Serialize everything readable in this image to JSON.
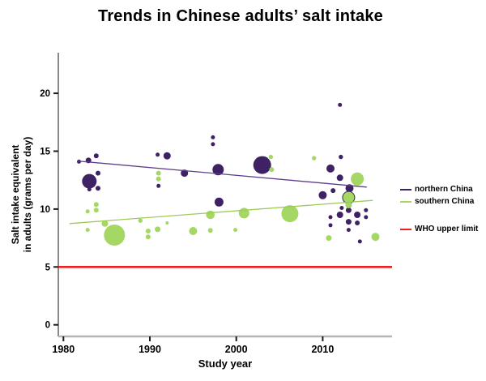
{
  "window": {
    "background": "#ffffff"
  },
  "chart_data": {
    "type": "scatter",
    "title": "Trends in Chinese adults’ salt intake",
    "xlabel": "Study year",
    "ylabel_line1": "Salt intake equivalent",
    "ylabel_line2": "in adults (grams per day)",
    "xticks": [
      1980,
      1990,
      2000,
      2010
    ],
    "yticks": [
      0,
      5,
      10,
      15,
      20
    ],
    "xlim": [
      1979.4,
      2018.0
    ],
    "ylim": [
      -1.0,
      23.5
    ],
    "grid": false,
    "legend_position": "right",
    "point_format": "[study_year, salt_intake_g_per_day, bubble_radius_px]",
    "series": [
      {
        "name": "northern China",
        "color": "#3e2263",
        "trend_color": "#5e3d8a",
        "points": [
          [
            1981.8,
            14.1,
            2.5
          ],
          [
            1982.9,
            14.2,
            3.5
          ],
          [
            1983.8,
            14.6,
            3
          ],
          [
            1983.0,
            12.4,
            9
          ],
          [
            1983.0,
            11.7,
            2.5
          ],
          [
            1984.0,
            13.1,
            3
          ],
          [
            1984.0,
            11.8,
            3
          ],
          [
            1990.9,
            14.7,
            2.5
          ],
          [
            1992.0,
            14.6,
            4.5
          ],
          [
            1991.0,
            12.0,
            2.5
          ],
          [
            1994.0,
            13.1,
            4.5
          ],
          [
            1997.3,
            16.2,
            2.5
          ],
          [
            1997.3,
            15.6,
            2.5
          ],
          [
            1997.9,
            13.4,
            7
          ],
          [
            1998.0,
            10.6,
            5.5
          ],
          [
            2003.0,
            13.8,
            11
          ],
          [
            2012.0,
            19.0,
            2.5
          ],
          [
            2012.1,
            14.5,
            2.7
          ],
          [
            2010.9,
            13.5,
            5
          ],
          [
            2012.0,
            12.7,
            4
          ],
          [
            2013.1,
            11.8,
            5
          ],
          [
            2011.2,
            11.6,
            3
          ],
          [
            2010.0,
            11.2,
            5
          ],
          [
            2013.0,
            11.0,
            8
          ],
          [
            2012.2,
            10.1,
            2.5
          ],
          [
            2013.0,
            9.9,
            3.5
          ],
          [
            2012.0,
            9.5,
            4
          ],
          [
            2014.0,
            9.5,
            4
          ],
          [
            2015.0,
            9.9,
            2.5
          ],
          [
            2015.0,
            9.3,
            2.5
          ],
          [
            2010.9,
            9.3,
            2.5
          ],
          [
            2010.9,
            8.6,
            2.5
          ],
          [
            2013.0,
            8.9,
            3.5
          ],
          [
            2014.0,
            8.8,
            3
          ],
          [
            2013.0,
            8.2,
            2.5
          ],
          [
            2014.3,
            7.2,
            2.5
          ]
        ]
      },
      {
        "name": "southern China",
        "color": "#a5d764",
        "trend_color": "#9ccb56",
        "points": [
          [
            1982.8,
            9.8,
            2.5
          ],
          [
            1982.8,
            8.2,
            2.5
          ],
          [
            1983.8,
            10.4,
            3
          ],
          [
            1983.8,
            9.9,
            3
          ],
          [
            1984.8,
            8.75,
            4
          ],
          [
            1985.9,
            7.75,
            13
          ],
          [
            1988.9,
            9.0,
            2.7
          ],
          [
            1989.8,
            8.1,
            3
          ],
          [
            1989.8,
            7.6,
            3
          ],
          [
            1990.9,
            8.25,
            3.5
          ],
          [
            1992.0,
            8.8,
            2
          ],
          [
            1991.0,
            13.1,
            3
          ],
          [
            1991.0,
            12.6,
            3
          ],
          [
            1995.0,
            8.1,
            5
          ],
          [
            1997.0,
            9.5,
            5.3
          ],
          [
            1997.0,
            8.15,
            3
          ],
          [
            1999.9,
            8.2,
            2.5
          ],
          [
            2000.9,
            9.65,
            6.5
          ],
          [
            2004.0,
            14.5,
            2.7
          ],
          [
            2004.1,
            13.4,
            3
          ],
          [
            2006.2,
            9.6,
            10.5
          ],
          [
            2009.0,
            14.4,
            2.7
          ],
          [
            2014.0,
            12.6,
            8
          ],
          [
            2013.0,
            11.0,
            7
          ],
          [
            2013.0,
            10.35,
            4
          ],
          [
            2010.7,
            7.5,
            3.5
          ],
          [
            2016.1,
            7.6,
            5
          ]
        ]
      }
    ],
    "trendlines": [
      {
        "series": "northern China",
        "x1": 1981.6,
        "y1": 14.15,
        "x2": 2015.1,
        "y2": 11.9
      },
      {
        "series": "southern China",
        "x1": 1980.7,
        "y1": 8.75,
        "x2": 2015.8,
        "y2": 10.75
      }
    ],
    "reference_line": {
      "label": "WHO upper limit",
      "value": 5,
      "color": "#ee1f1f"
    }
  }
}
